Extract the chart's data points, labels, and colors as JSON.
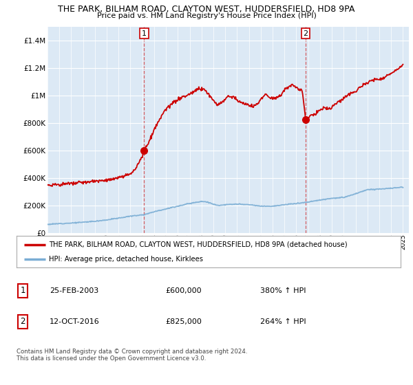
{
  "title": "THE PARK, BILHAM ROAD, CLAYTON WEST, HUDDERSFIELD, HD8 9PA",
  "subtitle": "Price paid vs. HM Land Registry's House Price Index (HPI)",
  "legend_line1": "THE PARK, BILHAM ROAD, CLAYTON WEST, HUDDERSFIELD, HD8 9PA (detached house)",
  "legend_line2": "HPI: Average price, detached house, Kirklees",
  "footer": "Contains HM Land Registry data © Crown copyright and database right 2024.\nThis data is licensed under the Open Government Licence v3.0.",
  "sale1_date": "25-FEB-2003",
  "sale1_price": "£600,000",
  "sale1_hpi": "380% ↑ HPI",
  "sale2_date": "12-OCT-2016",
  "sale2_price": "£825,000",
  "sale2_hpi": "264% ↑ HPI",
  "sale1_year": 2003.15,
  "sale1_value": 600000,
  "sale2_year": 2016.79,
  "sale2_value": 825000,
  "red_color": "#cc0000",
  "blue_color": "#7aadd4",
  "plot_bg": "#dce9f5",
  "ylim": [
    0,
    1500000
  ],
  "yticks": [
    0,
    200000,
    400000,
    600000,
    800000,
    1000000,
    1200000,
    1400000
  ],
  "xlim_start": 1995,
  "xlim_end": 2025.5
}
